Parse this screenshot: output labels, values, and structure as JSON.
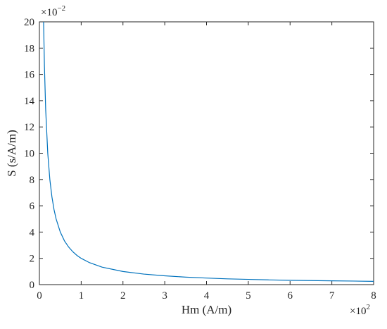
{
  "chart_data": {
    "type": "line",
    "title": "",
    "xlabel": "Hm (A/m)",
    "ylabel": "S (s/A/m)",
    "x_multiplier": "×10",
    "x_multiplier_exp": "2",
    "y_multiplier": "×10",
    "y_multiplier_exp": "−2",
    "xlim": [
      0,
      8
    ],
    "ylim": [
      0,
      20
    ],
    "xticks": [
      "0",
      "1",
      "2",
      "3",
      "4",
      "5",
      "6",
      "7",
      "8"
    ],
    "yticks": [
      "0",
      "2",
      "4",
      "6",
      "8",
      "10",
      "12",
      "14",
      "16",
      "18",
      "20"
    ],
    "grid": false,
    "legend": "none",
    "line_color": "#0072BD",
    "series": [
      {
        "x": [
          0.1,
          0.12,
          0.15,
          0.2,
          0.25,
          0.3,
          0.35,
          0.4,
          0.5,
          0.6,
          0.7,
          0.8,
          0.9,
          1.0,
          1.2,
          1.5,
          2.0,
          2.5,
          3.0,
          3.5,
          4.0,
          4.5,
          5.0,
          5.5,
          6.0,
          6.5,
          7.0,
          7.5,
          8.0
        ],
        "y": [
          20.0,
          16.67,
          13.33,
          10.0,
          8.0,
          6.67,
          5.71,
          5.0,
          4.0,
          3.33,
          2.86,
          2.5,
          2.22,
          2.0,
          1.67,
          1.33,
          1.0,
          0.8,
          0.67,
          0.57,
          0.5,
          0.44,
          0.4,
          0.36,
          0.33,
          0.31,
          0.29,
          0.27,
          0.25
        ]
      }
    ]
  }
}
